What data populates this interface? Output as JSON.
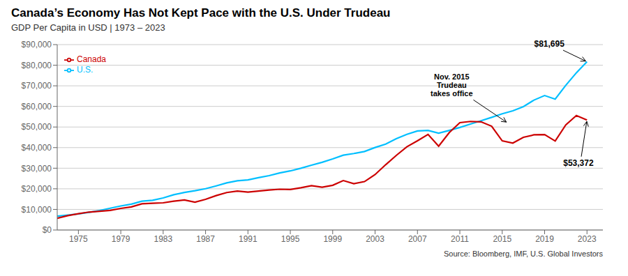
{
  "chart_data": {
    "type": "line",
    "title": "Canada’s Economy Has Not Kept Pace with the U.S. Under Trudeau",
    "subtitle": "GDP Per Capita in USD | 1973 – 2023",
    "source": "Source: Bloomberg, IMF, U.S. Global Investors",
    "x": [
      1973,
      1974,
      1975,
      1976,
      1977,
      1978,
      1979,
      1980,
      1981,
      1982,
      1983,
      1984,
      1985,
      1986,
      1987,
      1988,
      1989,
      1990,
      1991,
      1992,
      1993,
      1994,
      1995,
      1996,
      1997,
      1998,
      1999,
      2000,
      2001,
      2002,
      2003,
      2004,
      2005,
      2006,
      2007,
      2008,
      2009,
      2010,
      2011,
      2012,
      2013,
      2014,
      2015,
      2016,
      2017,
      2018,
      2019,
      2020,
      2021,
      2022,
      2023
    ],
    "series": [
      {
        "name": "U.S.",
        "color": "#00BFFF",
        "values": [
          6726,
          7226,
          7801,
          8592,
          9453,
          10565,
          11674,
          12575,
          13976,
          14434,
          15544,
          17121,
          18237,
          19071,
          20038,
          21417,
          22857,
          23889,
          24342,
          25419,
          26387,
          27695,
          28691,
          29968,
          31459,
          32854,
          34515,
          36330,
          37134,
          38107,
          40048,
          41725,
          44308,
          46437,
          48060,
          48328,
          46999,
          48358,
          49782,
          51433,
          53041,
          54677,
          56444,
          57867,
          59915,
          63064,
          65280,
          63531,
          70249,
          76330,
          81695
        ]
      },
      {
        "name": "Canada",
        "color": "#CC0000",
        "values": [
          5700,
          7000,
          7900,
          8700,
          9100,
          9500,
          10500,
          11200,
          12700,
          13000,
          13200,
          14000,
          14600,
          13500,
          14900,
          16700,
          18200,
          18900,
          18400,
          18900,
          19400,
          19800,
          19700,
          20500,
          21500,
          20800,
          21700,
          24000,
          22500,
          23500,
          26900,
          31700,
          36200,
          40400,
          43300,
          46400,
          40700,
          47300,
          52100,
          52700,
          52500,
          50400,
          43300,
          42200,
          45000,
          46200,
          46300,
          43200,
          51000,
          55580,
          53372
        ]
      }
    ],
    "xlim": [
      1973,
      2024.5
    ],
    "xticks": [
      1975,
      1979,
      1983,
      1987,
      1991,
      1995,
      1999,
      2003,
      2007,
      2011,
      2015,
      2019,
      2023
    ],
    "ylim": [
      0,
      90000
    ],
    "yticks": [
      {
        "value": 0,
        "label": "$0"
      },
      {
        "value": 10000,
        "label": "$10,000"
      },
      {
        "value": 20000,
        "label": "$20,000"
      },
      {
        "value": 30000,
        "label": "$30,000"
      },
      {
        "value": 40000,
        "label": "$40,000"
      },
      {
        "value": 50000,
        "label": "$50,000"
      },
      {
        "value": 60000,
        "label": "$60,000"
      },
      {
        "value": 70000,
        "label": "$70,000"
      },
      {
        "value": 80000,
        "label": "$80,000"
      },
      {
        "value": 90000,
        "label": "$90,000"
      }
    ],
    "grid": true,
    "legend": "upper left",
    "annotations": [
      {
        "text": "$81,695",
        "x": 2023,
        "y": 81695
      },
      {
        "text": "$53,372",
        "x": 2023,
        "y": 53372
      },
      {
        "text": "Nov. 2015\nTrudeau\ntakes office",
        "x": 2015.5,
        "y": 52000
      }
    ]
  }
}
